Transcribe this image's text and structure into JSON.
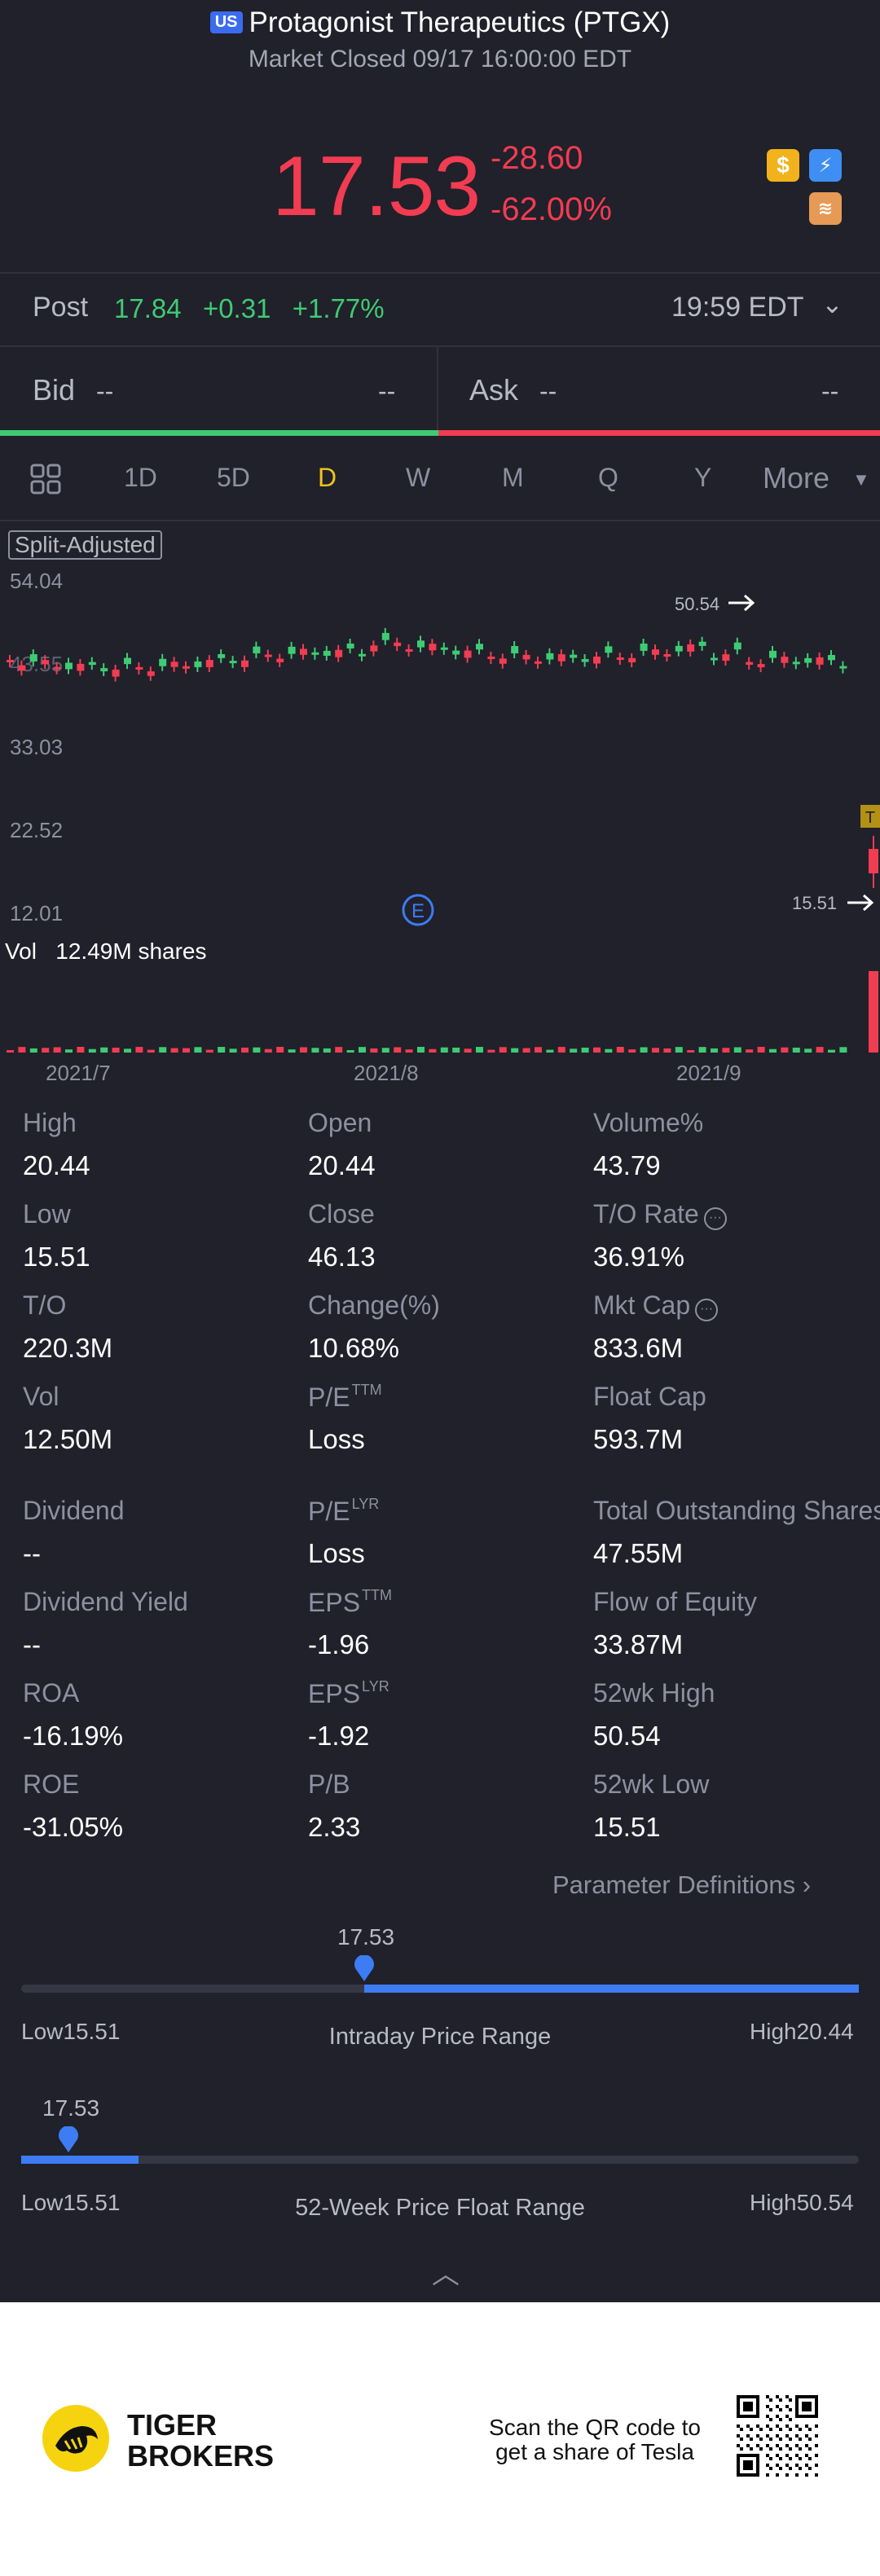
{
  "header": {
    "market_badge": "US",
    "title": "Protagonist Therapeutics (PTGX)",
    "subtitle": "Market Closed 09/17 16:00:00 EDT"
  },
  "quote": {
    "price": "17.53",
    "change": "-28.60",
    "change_pct": "-62.00%",
    "icons": [
      "dollar-icon",
      "flash-icon",
      "stack-icon"
    ]
  },
  "post": {
    "label": "Post",
    "price": "17.84",
    "change": "+0.31",
    "change_pct": "+1.77%",
    "time": "19:59 EDT"
  },
  "bid_ask": {
    "bid_label": "Bid",
    "bid_price": "--",
    "bid_size": "--",
    "ask_label": "Ask",
    "ask_price": "--",
    "ask_size": "--"
  },
  "tabs": {
    "items": [
      "1D",
      "5D",
      "D",
      "W",
      "M",
      "Q",
      "Y"
    ],
    "active": "D",
    "more": "More"
  },
  "chart": {
    "badge": "Split-Adjusted",
    "y_ticks": [
      "54.04",
      "43.55",
      "33.03",
      "22.52",
      "12.01"
    ],
    "high_marker": "50.54",
    "low_marker": "15.51",
    "event_marker": "E",
    "vol_label": "Vol",
    "vol_value": "12.49M shares",
    "x_ticks": [
      "2021/7",
      "2021/8",
      "2021/9"
    ],
    "colors": {
      "up": "#3fcb74",
      "down": "#f23c52"
    }
  },
  "stats": [
    {
      "label": "High",
      "value": "20.44"
    },
    {
      "label": "Open",
      "value": "20.44"
    },
    {
      "label": "Volume%",
      "value": "43.79"
    },
    {
      "label": "Low",
      "value": "15.51"
    },
    {
      "label": "Close",
      "value": "46.13"
    },
    {
      "label": "T/O Rate",
      "value": "36.91%",
      "info": true
    },
    {
      "label": "T/O",
      "value": "220.3M"
    },
    {
      "label": "Change(%)",
      "value": "10.68%"
    },
    {
      "label": "Mkt Cap",
      "value": "833.6M",
      "info": true
    },
    {
      "label": "Vol",
      "value": "12.50M"
    },
    {
      "label": "P/E",
      "sup": "TTM",
      "value": "Loss"
    },
    {
      "label": "Float Cap",
      "value": "593.7M"
    },
    {
      "label": "Dividend",
      "value": "--"
    },
    {
      "label": "P/E",
      "sup": "LYR",
      "value": "Loss"
    },
    {
      "label": "Total Outstanding Shares",
      "value": "47.55M"
    },
    {
      "label": "Dividend Yield",
      "value": "--"
    },
    {
      "label": "EPS",
      "sup": "TTM",
      "value": "-1.96"
    },
    {
      "label": "Flow of Equity",
      "value": "33.87M"
    },
    {
      "label": "ROA",
      "value": "-16.19%"
    },
    {
      "label": "EPS",
      "sup": "LYR",
      "value": "-1.92"
    },
    {
      "label": "52wk High",
      "value": "50.54"
    },
    {
      "label": "ROE",
      "value": "-31.05%"
    },
    {
      "label": "P/B",
      "value": "2.33"
    },
    {
      "label": "52wk Low",
      "value": "15.51"
    }
  ],
  "param_definitions": "Parameter Definitions",
  "intraday_range": {
    "price": "17.53",
    "low": "Low15.51",
    "high": "High20.44",
    "title": "Intraday Price Range",
    "position": 0.41
  },
  "week52_range": {
    "price": "17.53",
    "low": "Low15.51",
    "high": "High50.54",
    "title": "52-Week Price Float Range",
    "position": 0.06
  },
  "footer": {
    "brand_line1": "TIGER",
    "brand_line2": "BROKERS",
    "scan_line1": "Scan the QR code to",
    "scan_line2": "get a share of Tesla"
  }
}
